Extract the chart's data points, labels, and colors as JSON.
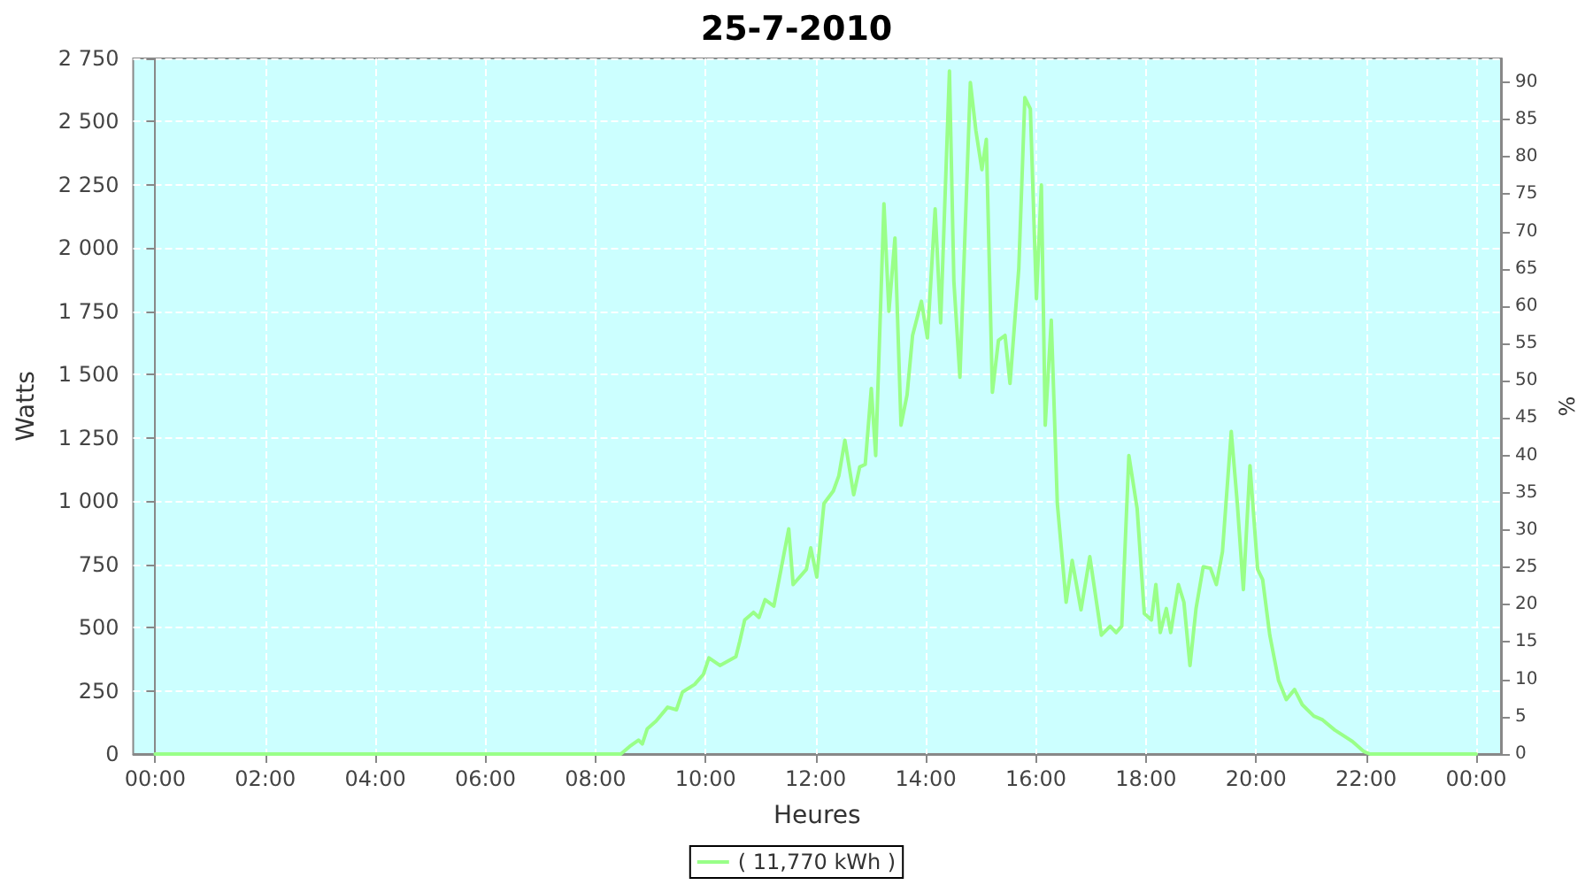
{
  "chart_data": {
    "type": "line",
    "title": "25-7-2010",
    "xlabel": "Heures",
    "ylabel": "Watts",
    "y2label": "%",
    "xlim": [
      -0.4,
      24.45
    ],
    "xticks": [
      {
        "value": 0,
        "label": "00:00"
      },
      {
        "value": 2,
        "label": "02:00"
      },
      {
        "value": 4,
        "label": "04:00"
      },
      {
        "value": 6,
        "label": "06:00"
      },
      {
        "value": 8,
        "label": "08:00"
      },
      {
        "value": 10,
        "label": "10:00"
      },
      {
        "value": 12,
        "label": "12:00"
      },
      {
        "value": 14,
        "label": "14:00"
      },
      {
        "value": 16,
        "label": "16:00"
      },
      {
        "value": 18,
        "label": "18:00"
      },
      {
        "value": 20,
        "label": "20:00"
      },
      {
        "value": 22,
        "label": "22:00"
      },
      {
        "value": 24,
        "label": "00:00"
      }
    ],
    "ylim": [
      0,
      2750
    ],
    "yticks": [
      0,
      250,
      500,
      750,
      {
        "value": 1000,
        "label": "1 000"
      },
      {
        "value": 1250,
        "label": "1 250"
      },
      {
        "value": 1500,
        "label": "1 500"
      },
      {
        "value": 1750,
        "label": "1 750"
      },
      {
        "value": 2000,
        "label": "2 000"
      },
      {
        "value": 2250,
        "label": "2 250"
      },
      {
        "value": 2500,
        "label": "2 500"
      },
      {
        "value": 2750,
        "label": "2 750"
      }
    ],
    "y2lim": [
      0,
      93.2
    ],
    "y2ticks": [
      0,
      5,
      10,
      15,
      20,
      25,
      30,
      35,
      40,
      45,
      50,
      55,
      60,
      65,
      70,
      75,
      80,
      85,
      90
    ],
    "grid": true,
    "legend": "bottom",
    "marker": "none",
    "line_style": "solid",
    "series": [
      {
        "name": "( 11,770 kWh )",
        "color": "#99ff88",
        "x": [
          0,
          8.46,
          8.62,
          8.78,
          8.85,
          8.94,
          9.1,
          9.31,
          9.47,
          9.58,
          9.8,
          9.96,
          10.06,
          10.26,
          10.55,
          10.62,
          10.71,
          10.87,
          10.97,
          11.08,
          11.24,
          11.37,
          11.51,
          11.59,
          11.83,
          11.91,
          12.02,
          12.15,
          12.32,
          12.42,
          12.53,
          12.69,
          12.8,
          12.9,
          13.01,
          13.09,
          13.24,
          13.33,
          13.44,
          13.55,
          13.66,
          13.76,
          13.92,
          14.03,
          14.17,
          14.27,
          14.43,
          14.51,
          14.62,
          14.81,
          14.91,
          15.02,
          15.1,
          15.21,
          15.32,
          15.44,
          15.53,
          15.69,
          15.8,
          15.9,
          16.01,
          16.1,
          16.17,
          16.28,
          16.39,
          16.55,
          16.66,
          16.82,
          16.98,
          17.19,
          17.35,
          17.46,
          17.56,
          17.69,
          17.84,
          17.97,
          18.1,
          18.18,
          18.26,
          18.37,
          18.45,
          18.59,
          18.69,
          18.8,
          18.91,
          19.04,
          19.17,
          19.28,
          19.39,
          19.55,
          19.66,
          19.77,
          19.89,
          20.03,
          20.12,
          20.25,
          20.41,
          20.55,
          20.7,
          20.84,
          21.05,
          21.21,
          21.43,
          21.75,
          21.96,
          22.07,
          24
        ],
        "values": [
          0,
          0,
          30,
          55,
          40,
          100,
          130,
          185,
          175,
          245,
          275,
          315,
          380,
          350,
          385,
          445,
          530,
          560,
          540,
          610,
          585,
          730,
          890,
          670,
          730,
          815,
          700,
          990,
          1040,
          1100,
          1240,
          1025,
          1135,
          1145,
          1445,
          1180,
          2175,
          1750,
          2040,
          1300,
          1420,
          1655,
          1790,
          1645,
          2155,
          1705,
          2700,
          1870,
          1490,
          2655,
          2465,
          2310,
          2430,
          1430,
          1635,
          1655,
          1465,
          1920,
          2595,
          2550,
          1800,
          2250,
          1300,
          1715,
          990,
          600,
          765,
          570,
          780,
          470,
          505,
          480,
          505,
          1180,
          970,
          555,
          530,
          670,
          480,
          575,
          480,
          670,
          600,
          350,
          575,
          740,
          735,
          670,
          800,
          1275,
          990,
          650,
          1140,
          730,
          690,
          470,
          290,
          215,
          255,
          195,
          150,
          135,
          95,
          50,
          10,
          0,
          0
        ]
      }
    ]
  }
}
